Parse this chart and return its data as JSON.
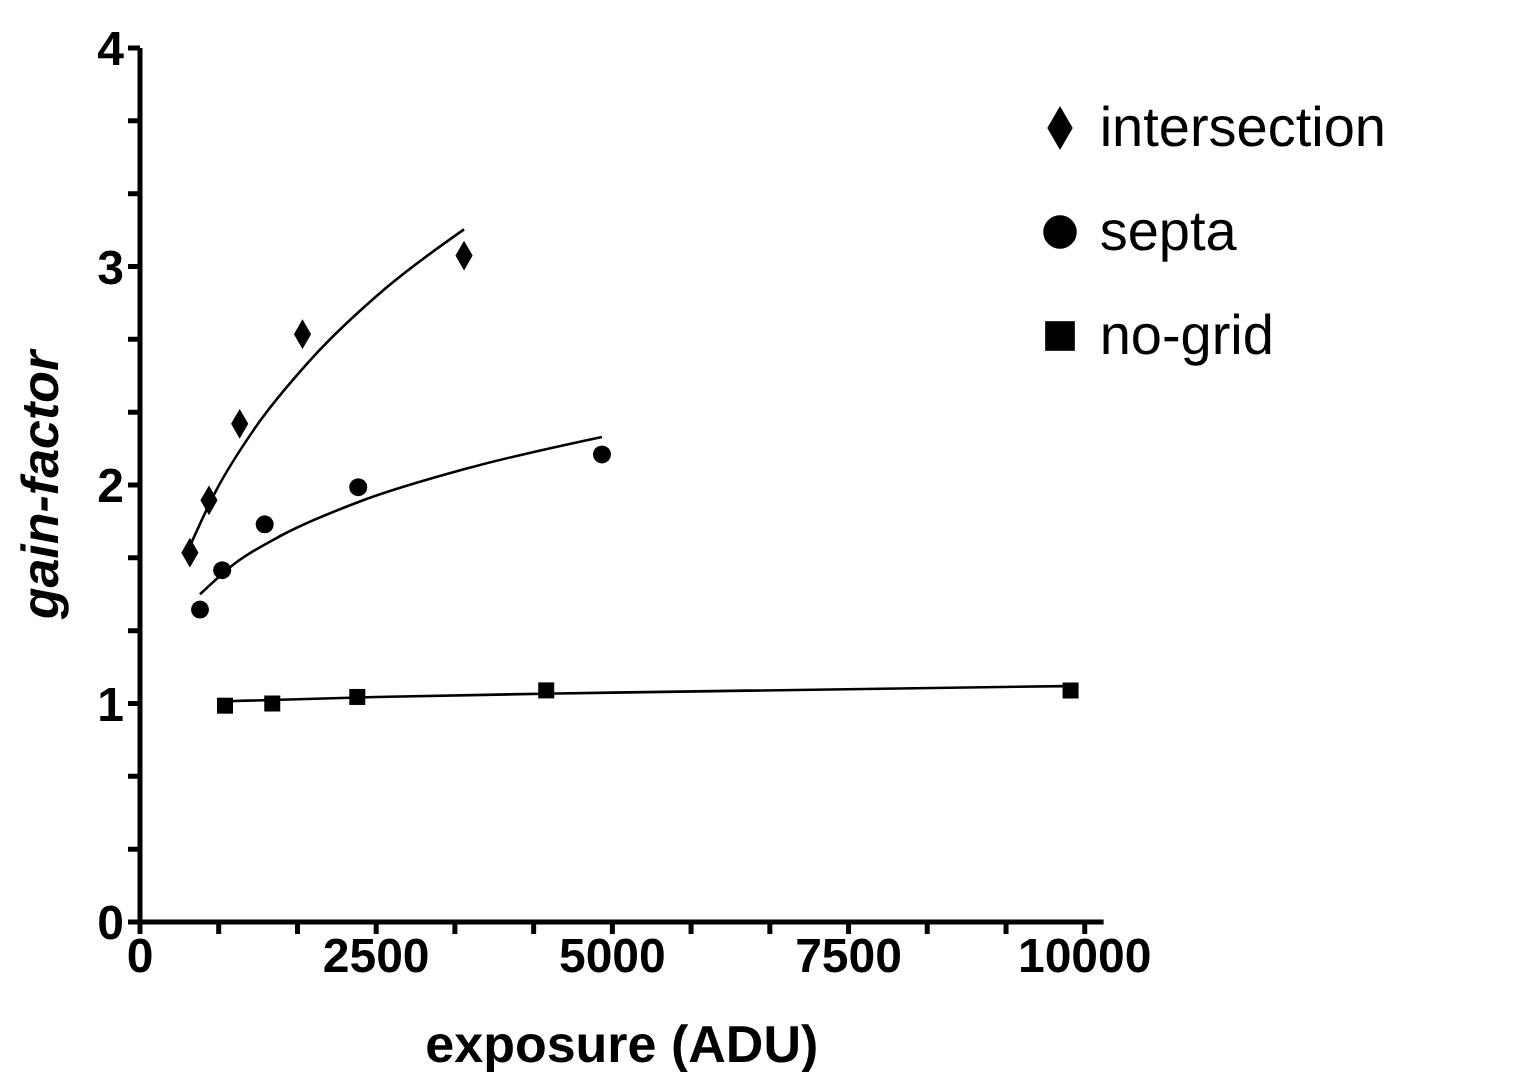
{
  "chart_data": {
    "type": "scatter",
    "xlabel": "exposure (ADU)",
    "ylabel": "gain-factor",
    "xlim": [
      0,
      10200
    ],
    "xticks": [
      0,
      {
        "value": 833,
        "label": null
      },
      {
        "value": 1667,
        "label": null
      },
      2500,
      {
        "value": 3333,
        "label": null
      },
      {
        "value": 4167,
        "label": null
      },
      5000,
      {
        "value": 5833,
        "label": null
      },
      {
        "value": 6667,
        "label": null
      },
      7500,
      {
        "value": 8333,
        "label": null
      },
      {
        "value": 9167,
        "label": null
      },
      10000
    ],
    "ylim": [
      0,
      4
    ],
    "yticks": [
      0,
      {
        "value": 0.333,
        "label": null
      },
      {
        "value": 0.667,
        "label": null
      },
      1,
      {
        "value": 1.333,
        "label": null
      },
      {
        "value": 1.667,
        "label": null
      },
      2,
      {
        "value": 2.333,
        "label": null
      },
      {
        "value": 2.667,
        "label": null
      },
      3,
      {
        "value": 3.333,
        "label": null
      },
      {
        "value": 3.667,
        "label": null
      },
      4
    ],
    "grid": false,
    "legend": "top right",
    "series": [
      {
        "name": "intersection",
        "color": "#000000",
        "marker": "diamond",
        "x": [
          528,
          730,
          1055,
          1720,
          3430
        ],
        "values": [
          1.69,
          1.93,
          2.28,
          2.69,
          3.05
        ]
      },
      {
        "name": "septa",
        "color": "#000000",
        "marker": "circle",
        "x": [
          635,
          870,
          1320,
          2310,
          4890
        ],
        "values": [
          1.43,
          1.61,
          1.82,
          1.99,
          2.14
        ]
      },
      {
        "name": "no-grid",
        "color": "#000000",
        "marker": "square",
        "x": [
          900,
          1400,
          2300,
          4300,
          9850
        ],
        "values": [
          0.99,
          1.0,
          1.03,
          1.06,
          1.06
        ]
      },
      {
        "type": "line",
        "color": "#000000",
        "marker": "none",
        "x": [
          528,
          800,
          1200,
          1800,
          2600,
          3430
        ],
        "values": [
          1.72,
          1.97,
          2.25,
          2.57,
          2.9,
          3.17
        ]
      },
      {
        "type": "line",
        "color": "#000000",
        "marker": "none",
        "x": [
          635,
          1000,
          1500,
          2300,
          3500,
          4890
        ],
        "values": [
          1.5,
          1.64,
          1.77,
          1.92,
          2.08,
          2.22
        ]
      },
      {
        "type": "line",
        "color": "#000000",
        "marker": "none",
        "x": [
          900,
          2500,
          5000,
          9850
        ],
        "values": [
          1.01,
          1.03,
          1.05,
          1.08
        ]
      }
    ]
  }
}
